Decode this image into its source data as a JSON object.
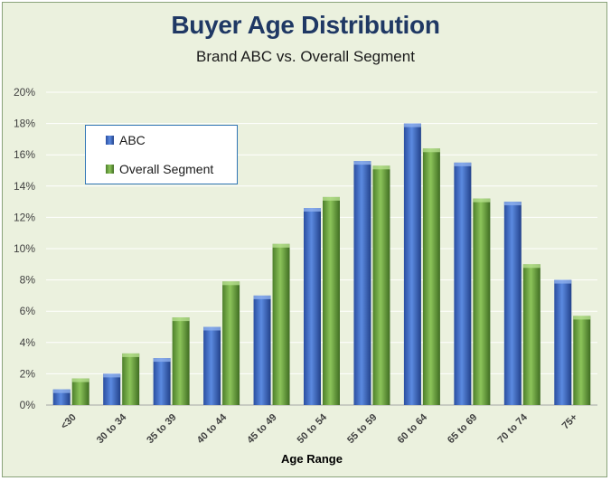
{
  "chart_data": {
    "type": "bar",
    "title": "Buyer Age Distribution",
    "subtitle": "Brand ABC vs. Overall Segment",
    "xlabel": "Age Range",
    "ylabel": "",
    "categories": [
      "<30",
      "30 to 34",
      "35 to 39",
      "40 to 44",
      "45 to 49",
      "50 to 54",
      "55 to 59",
      "60 to 64",
      "65 to 69",
      "70 to 74",
      "75+"
    ],
    "series": [
      {
        "name": "ABC",
        "values": [
          1.0,
          2.0,
          3.0,
          5.0,
          7.0,
          12.6,
          15.6,
          18.0,
          15.5,
          13.0,
          8.0
        ],
        "color": "#4472c4"
      },
      {
        "name": "Overall Segment",
        "values": [
          1.7,
          3.3,
          5.6,
          7.9,
          10.3,
          13.3,
          15.3,
          16.4,
          13.2,
          9.0,
          5.7
        ],
        "color": "#70ad47"
      }
    ],
    "ylim": [
      0,
      20
    ],
    "yticks": [
      "0%",
      "2%",
      "4%",
      "6%",
      "8%",
      "10%",
      "12%",
      "14%",
      "16%",
      "18%",
      "20%"
    ],
    "grid": true,
    "legend_position": "top-left"
  }
}
